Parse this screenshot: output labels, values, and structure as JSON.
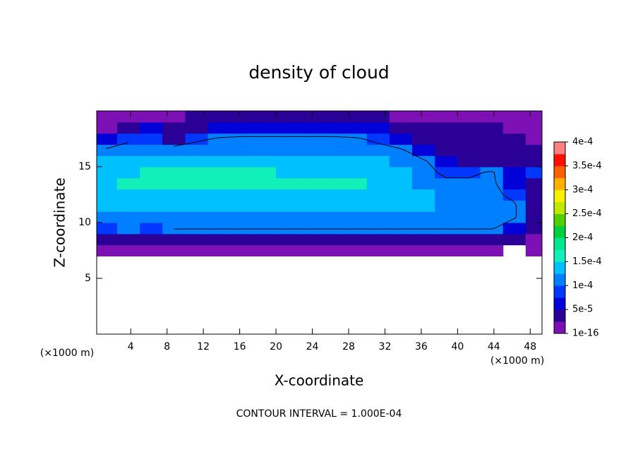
{
  "chart_data": {
    "type": "contour",
    "title": "density of cloud",
    "x_label": "X-coordinate",
    "y_label": "Z-coordinate",
    "x_unit_label": "(×1000 m)",
    "y_unit_label": "(×1000 m)",
    "contour_interval": {
      "value": 0.0001,
      "label": "CONTOUR INTERVAL = 1.000E-04"
    },
    "xlim": [
      0.25,
      49.3
    ],
    "ylim": [
      0,
      20
    ],
    "xticks": [
      4,
      8,
      12,
      16,
      20,
      24,
      28,
      32,
      36,
      40,
      44,
      48
    ],
    "yticks": [
      5,
      10,
      15
    ],
    "x": [
      1.25,
      3.75,
      6.25,
      8.75,
      11.25,
      13.75,
      16.25,
      18.75,
      21.25,
      23.75,
      26.25,
      28.75,
      31.25,
      33.75,
      36.25,
      38.75,
      41.25,
      43.75,
      46.25,
      48.75
    ],
    "y": [
      7.5,
      8.5,
      9.5,
      10.5,
      11.5,
      12.5,
      13.5,
      14.5,
      15.5,
      16.5,
      17.5,
      18.5,
      19.5
    ],
    "z": [
      [
        1e-05,
        1e-05,
        1e-05,
        1e-05,
        1e-05,
        1e-05,
        1e-05,
        1e-05,
        1e-05,
        1e-05,
        1e-05,
        1e-05,
        1e-05,
        1e-05,
        1e-05,
        1e-05,
        1e-05,
        1e-05,
        null,
        1e-05
      ],
      [
        4e-05,
        3e-05,
        4e-05,
        4e-05,
        4e-05,
        4e-05,
        4e-05,
        4e-05,
        4e-05,
        4e-05,
        4e-05,
        4e-05,
        4e-05,
        4e-05,
        4e-05,
        4e-05,
        4e-05,
        4e-05,
        3e-05,
        2e-05
      ],
      [
        0.0001,
        0.000105,
        0.0001,
        0.000105,
        0.000105,
        0.000105,
        0.000105,
        0.000105,
        0.000105,
        0.000105,
        0.000105,
        0.000105,
        0.000105,
        0.000105,
        0.000105,
        0.000105,
        0.000105,
        0.000105,
        7e-05,
        4e-05
      ],
      [
        0.000115,
        0.00012,
        0.00012,
        0.00012,
        0.00012,
        0.00012,
        0.00012,
        0.00012,
        0.00012,
        0.00012,
        0.00012,
        0.00012,
        0.00012,
        0.00012,
        0.000115,
        0.000115,
        0.00011,
        0.00011,
        0.000105,
        4e-05
      ],
      [
        0.00013,
        0.000135,
        0.000135,
        0.000135,
        0.000135,
        0.000135,
        0.000135,
        0.000135,
        0.000135,
        0.000135,
        0.000135,
        0.000135,
        0.000135,
        0.000135,
        0.00013,
        0.00012,
        0.000115,
        0.00011,
        0.000105,
        5e-05
      ],
      [
        0.000145,
        0.00015,
        0.00015,
        0.00015,
        0.00015,
        0.00015,
        0.00015,
        0.00015,
        0.00015,
        0.00015,
        0.00015,
        0.00015,
        0.00015,
        0.000145,
        0.000135,
        0.00012,
        0.000115,
        0.00011,
        9e-05,
        4e-05
      ],
      [
        0.00015,
        0.000155,
        0.000155,
        0.000155,
        0.000155,
        0.000155,
        0.000155,
        0.000155,
        0.000155,
        0.000155,
        0.000155,
        0.000155,
        0.00015,
        0.00014,
        0.000125,
        0.00011,
        0.00011,
        0.00011,
        6e-05,
        5e-05
      ],
      [
        0.000145,
        0.00015,
        0.000155,
        0.000155,
        0.000155,
        0.000155,
        0.000155,
        0.000155,
        0.00015,
        0.00015,
        0.00015,
        0.000145,
        0.00014,
        0.00013,
        0.000115,
        9e-05,
        9e-05,
        0.000105,
        6e-05,
        8e-05
      ],
      [
        0.00013,
        0.00014,
        0.000145,
        0.000145,
        0.000145,
        0.000145,
        0.000145,
        0.000145,
        0.000145,
        0.000145,
        0.00014,
        0.000135,
        0.00013,
        0.00012,
        0.000105,
        7e-05,
        5e-05,
        4e-05,
        4e-05,
        5e-05
      ],
      [
        0.000105,
        0.00012,
        0.000125,
        0.000125,
        0.000125,
        0.000125,
        0.000125,
        0.000125,
        0.000125,
        0.000125,
        0.000125,
        0.00012,
        0.000115,
        0.000105,
        7e-05,
        5e-05,
        4.5e-05,
        4e-05,
        3.5e-05,
        3e-05
      ],
      [
        6e-05,
        9e-05,
        0.0001,
        5e-05,
        9e-05,
        0.000105,
        0.00011,
        0.00011,
        0.00011,
        0.00011,
        0.00011,
        0.000105,
        9e-05,
        6e-05,
        4e-05,
        3.5e-05,
        4e-05,
        3.5e-05,
        3e-05,
        2.5e-05
      ],
      [
        2e-05,
        4e-05,
        6e-05,
        3e-05,
        5e-05,
        6e-05,
        6e-05,
        6e-05,
        6e-05,
        6e-05,
        6e-05,
        6e-05,
        5.5e-05,
        4e-05,
        3e-05,
        3e-05,
        3.5e-05,
        3e-05,
        2.5e-05,
        2e-05
      ],
      [
        1e-05,
        1.5e-05,
        2e-05,
        2.5e-05,
        3e-05,
        3e-05,
        3e-05,
        3e-05,
        3e-05,
        3e-05,
        3e-05,
        3e-05,
        3e-05,
        2.5e-05,
        2e-05,
        2e-05,
        2.5e-05,
        2e-05,
        1.5e-05,
        1.5e-05
      ]
    ],
    "colorbar": {
      "ticks": [
        {
          "value": 1e-16,
          "label": "1e-16"
        },
        {
          "value": 5e-05,
          "label": "5e-5"
        },
        {
          "value": 0.0001,
          "label": "1e-4"
        },
        {
          "value": 0.00015,
          "label": "1.5e-4"
        },
        {
          "value": 0.0002,
          "label": "2e-4"
        },
        {
          "value": 0.00025,
          "label": "2.5e-4"
        },
        {
          "value": 0.0003,
          "label": "3e-4"
        },
        {
          "value": 0.00035,
          "label": "3.5e-4"
        },
        {
          "value": 0.0004,
          "label": "4e-4"
        }
      ],
      "colors": [
        "#7d10b4",
        "#2a0096",
        "#0000d8",
        "#0038ff",
        "#0080ff",
        "#00c0ff",
        "#10f0b8",
        "#00e890",
        "#00d040",
        "#50d000",
        "#c0e800",
        "#f8f000",
        "#ffb000",
        "#ff6000",
        "#ff1000",
        "#ff8080"
      ]
    }
  }
}
